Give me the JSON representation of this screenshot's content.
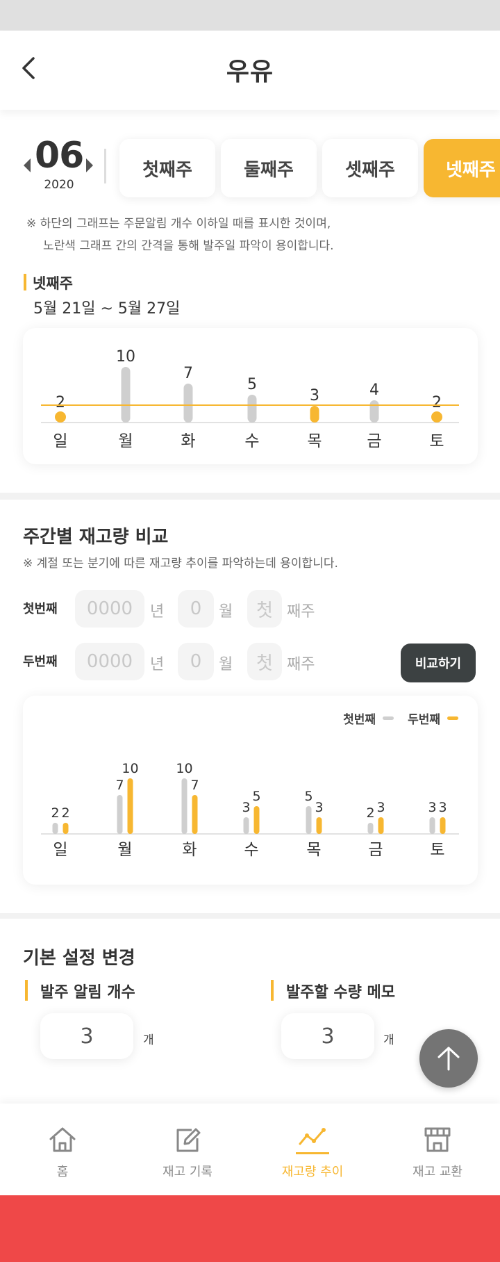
{
  "header": {
    "title": "우유"
  },
  "period": {
    "month": "06",
    "year": "2020"
  },
  "week_tabs": [
    {
      "label": "첫째주",
      "active": false
    },
    {
      "label": "둘째주",
      "active": false
    },
    {
      "label": "셋째주",
      "active": false
    },
    {
      "label": "넷째주",
      "active": true
    }
  ],
  "notice": {
    "line1": "※ 하단의 그래프는 주문알림 개수 이하일 때를 표시한 것이며,",
    "line2": "노란색 그래프 간의 간격을 통해 발주일 파악이 용이합니다."
  },
  "selected_week": {
    "label": "넷째주",
    "date_range": "5월 21일 ~ 5월 27일"
  },
  "comparison": {
    "title": "주간별 재고량 비교",
    "notice": "※ 계절 또는 분기에 따른 재고량 추이를 파악하는데 용이합니다.",
    "row1_label": "첫번째",
    "row2_label": "두번째",
    "year_placeholder": "0000",
    "month_placeholder": "0",
    "week_placeholder": "첫",
    "unit_year": "년",
    "unit_month": "월",
    "unit_week": "째주",
    "compare_button": "비교하기"
  },
  "settings": {
    "title": "기본 설정 변경",
    "alert_label": "발주 알림 개수",
    "alert_value": "3",
    "memo_label": "발주할 수량 메모",
    "memo_value": "3",
    "unit": "개"
  },
  "bottom_nav": [
    {
      "label": "홈",
      "icon": "home-icon",
      "active": false
    },
    {
      "label": "재고 기록",
      "icon": "edit-icon",
      "active": false
    },
    {
      "label": "재고량 추이",
      "icon": "trend-icon",
      "active": true
    },
    {
      "label": "재고 교환",
      "icon": "store-icon",
      "active": false
    }
  ],
  "colors": {
    "accent": "#f7b731",
    "gray_bar": "#cfcfcf",
    "dark_button": "#3c4142",
    "footer": "#ef4848"
  },
  "chart_data": [
    {
      "type": "bar",
      "categories": [
        "일",
        "월",
        "화",
        "수",
        "목",
        "금",
        "토"
      ],
      "values": [
        2,
        10,
        7,
        5,
        3,
        4,
        2
      ],
      "threshold": 3,
      "highlight_below_or_equal_threshold": true
    },
    {
      "type": "bar",
      "categories": [
        "일",
        "월",
        "화",
        "수",
        "목",
        "금",
        "토"
      ],
      "series": [
        {
          "name": "첫번째",
          "color": "#cfcfcf",
          "values": [
            2,
            7,
            10,
            3,
            5,
            2,
            3
          ]
        },
        {
          "name": "두번째",
          "color": "#f7b731",
          "values": [
            2,
            10,
            7,
            5,
            3,
            3,
            3
          ]
        }
      ],
      "legend": "top-right"
    }
  ]
}
